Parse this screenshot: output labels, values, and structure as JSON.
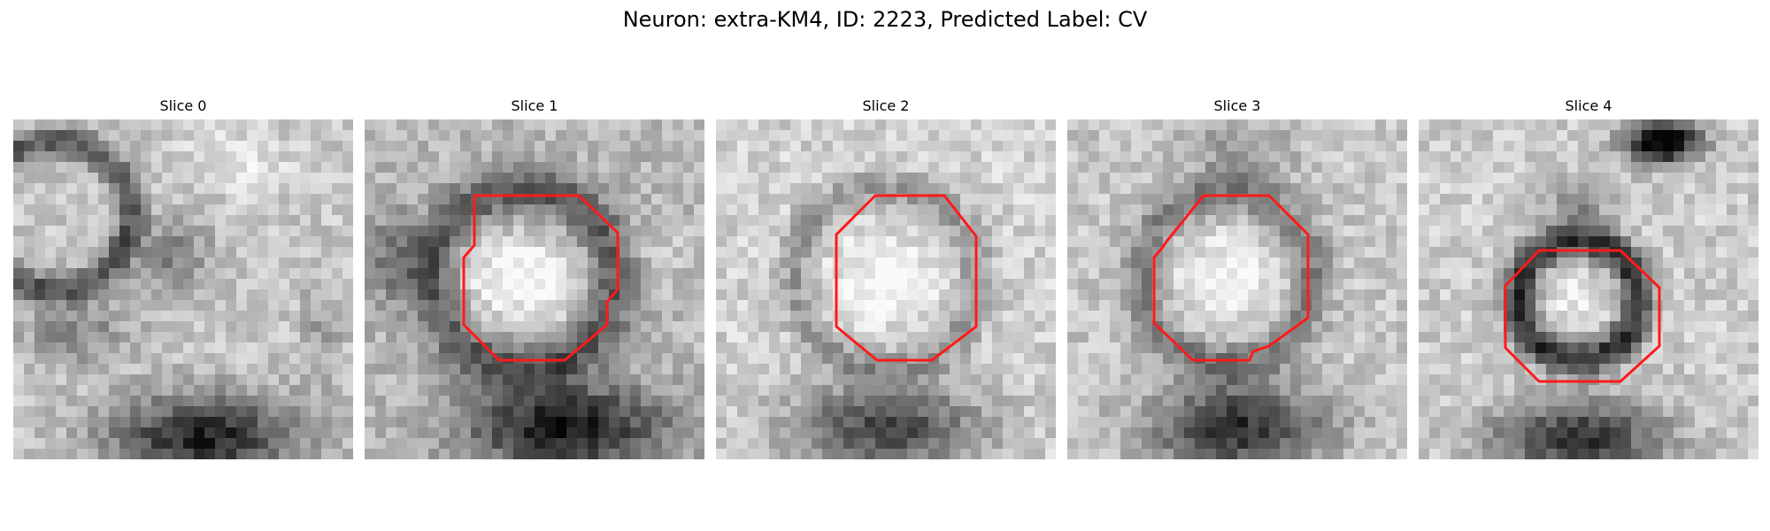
{
  "figure": {
    "title": "Neuron: extra-KM4, ID: 2223, Predicted Label: CV"
  },
  "outline_color": "#ff1a1a",
  "panels": [
    {
      "title": "Slice 0"
    },
    {
      "title": "Slice 1"
    },
    {
      "title": "Slice 2"
    },
    {
      "title": "Slice 3"
    },
    {
      "title": "Slice 4"
    }
  ]
}
